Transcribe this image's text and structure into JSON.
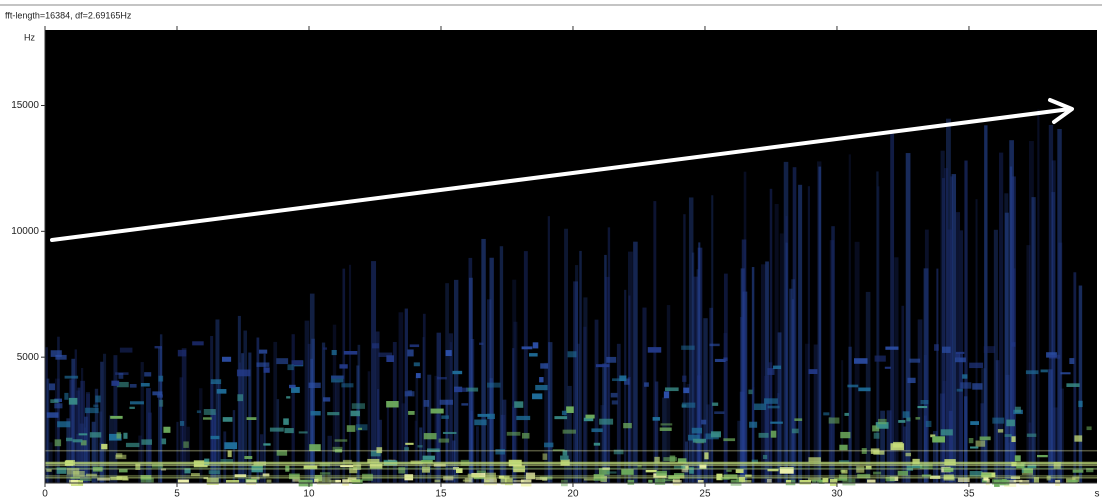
{
  "chart_data": {
    "type": "spectrogram",
    "title": "fft-length=16384, df=2.69165Hz",
    "y_label": "Hz",
    "x_label": "s",
    "xlim": [
      0,
      39.85
    ],
    "xticks": [
      0,
      5,
      10,
      15,
      20,
      25,
      30,
      35
    ],
    "ylim": [
      0,
      18000
    ],
    "yticks": [
      5000,
      10000,
      15000
    ]
  }
}
